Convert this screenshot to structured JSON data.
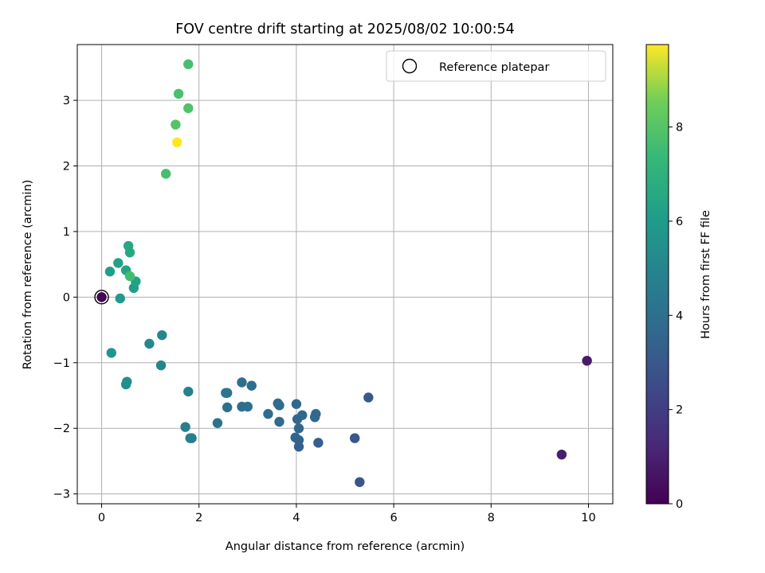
{
  "chart_data": {
    "type": "scatter",
    "title": "FOV centre drift starting at 2025/08/02 10:00:54",
    "xlabel": "Angular distance from reference (arcmin)",
    "ylabel": "Rotation from reference (arcmin)",
    "xlim": [
      -0.5,
      10.5
    ],
    "ylim": [
      -3.15,
      3.85
    ],
    "xticks": [
      0,
      2,
      4,
      6,
      8,
      10
    ],
    "xtick_labels": [
      "0",
      "2",
      "4",
      "6",
      "8",
      "10"
    ],
    "yticks": [
      -3,
      -2,
      -1,
      0,
      1,
      2,
      3
    ],
    "ytick_labels": [
      "−3",
      "−2",
      "−1",
      "0",
      "1",
      "2",
      "3"
    ],
    "grid": true,
    "legend": {
      "placement": "top-right",
      "entries": [
        "Reference platepar"
      ]
    },
    "colorbar": {
      "label": "Hours from first FF file",
      "colormap": "viridis",
      "range": [
        0,
        9.75
      ],
      "ticks": [
        0,
        2,
        4,
        6,
        8
      ],
      "tick_labels": [
        "0",
        "2",
        "4",
        "6",
        "8"
      ]
    },
    "reference_point": {
      "name": "Reference platepar",
      "x": 0,
      "y": 0
    },
    "points": [
      {
        "x": 0.0,
        "y": 0.0,
        "hours": 0.05
      },
      {
        "x": 9.45,
        "y": -2.4,
        "hours": 0.9
      },
      {
        "x": 9.97,
        "y": -0.97,
        "hours": 0.75
      },
      {
        "x": 5.3,
        "y": -2.82,
        "hours": 2.9
      },
      {
        "x": 5.2,
        "y": -2.15,
        "hours": 3.0
      },
      {
        "x": 5.48,
        "y": -1.53,
        "hours": 3.1
      },
      {
        "x": 4.45,
        "y": -2.22,
        "hours": 3.3
      },
      {
        "x": 4.05,
        "y": -2.28,
        "hours": 3.4
      },
      {
        "x": 4.05,
        "y": -2.18,
        "hours": 3.5
      },
      {
        "x": 3.98,
        "y": -2.14,
        "hours": 3.55
      },
      {
        "x": 4.05,
        "y": -2.0,
        "hours": 3.6
      },
      {
        "x": 4.02,
        "y": -1.86,
        "hours": 3.6
      },
      {
        "x": 4.12,
        "y": -1.8,
        "hours": 3.65
      },
      {
        "x": 4.0,
        "y": -1.63,
        "hours": 3.7
      },
      {
        "x": 4.38,
        "y": -1.83,
        "hours": 3.6
      },
      {
        "x": 4.4,
        "y": -1.78,
        "hours": 3.65
      },
      {
        "x": 3.65,
        "y": -1.65,
        "hours": 3.8
      },
      {
        "x": 3.62,
        "y": -1.62,
        "hours": 3.85
      },
      {
        "x": 3.65,
        "y": -1.9,
        "hours": 3.8
      },
      {
        "x": 3.42,
        "y": -1.78,
        "hours": 3.9
      },
      {
        "x": 3.08,
        "y": -1.35,
        "hours": 4.0
      },
      {
        "x": 2.88,
        "y": -1.3,
        "hours": 4.05
      },
      {
        "x": 2.88,
        "y": -1.67,
        "hours": 4.0
      },
      {
        "x": 3.0,
        "y": -1.67,
        "hours": 4.05
      },
      {
        "x": 2.58,
        "y": -1.46,
        "hours": 4.2
      },
      {
        "x": 2.55,
        "y": -1.46,
        "hours": 4.25
      },
      {
        "x": 2.58,
        "y": -1.68,
        "hours": 4.1
      },
      {
        "x": 2.38,
        "y": -1.92,
        "hours": 4.2
      },
      {
        "x": 1.85,
        "y": -2.15,
        "hours": 4.6
      },
      {
        "x": 1.82,
        "y": -2.15,
        "hours": 4.65
      },
      {
        "x": 1.72,
        "y": -1.98,
        "hours": 4.7
      },
      {
        "x": 1.78,
        "y": -1.44,
        "hours": 4.8
      },
      {
        "x": 1.22,
        "y": -1.04,
        "hours": 5.0
      },
      {
        "x": 1.24,
        "y": -0.58,
        "hours": 5.1
      },
      {
        "x": 0.98,
        "y": -0.71,
        "hours": 5.2
      },
      {
        "x": 0.52,
        "y": -1.29,
        "hours": 5.4
      },
      {
        "x": 0.5,
        "y": -1.33,
        "hours": 5.5
      },
      {
        "x": 0.2,
        "y": -0.85,
        "hours": 5.7
      },
      {
        "x": 0.38,
        "y": -0.02,
        "hours": 5.9
      },
      {
        "x": 0.66,
        "y": 0.14,
        "hours": 6.1
      },
      {
        "x": 0.7,
        "y": 0.24,
        "hours": 6.3
      },
      {
        "x": 0.17,
        "y": 0.39,
        "hours": 6.1
      },
      {
        "x": 0.34,
        "y": 0.52,
        "hours": 6.3
      },
      {
        "x": 0.5,
        "y": 0.41,
        "hours": 6.4
      },
      {
        "x": 0.58,
        "y": 0.68,
        "hours": 6.6
      },
      {
        "x": 0.55,
        "y": 0.78,
        "hours": 6.5
      },
      {
        "x": 0.58,
        "y": 0.32,
        "hours": 7.6
      },
      {
        "x": 1.32,
        "y": 1.88,
        "hours": 7.7
      },
      {
        "x": 1.55,
        "y": 2.36,
        "hours": 9.75
      },
      {
        "x": 1.52,
        "y": 2.63,
        "hours": 8.0
      },
      {
        "x": 1.58,
        "y": 3.1,
        "hours": 7.8
      },
      {
        "x": 1.78,
        "y": 2.88,
        "hours": 7.9
      },
      {
        "x": 1.78,
        "y": 3.55,
        "hours": 7.7
      }
    ]
  }
}
